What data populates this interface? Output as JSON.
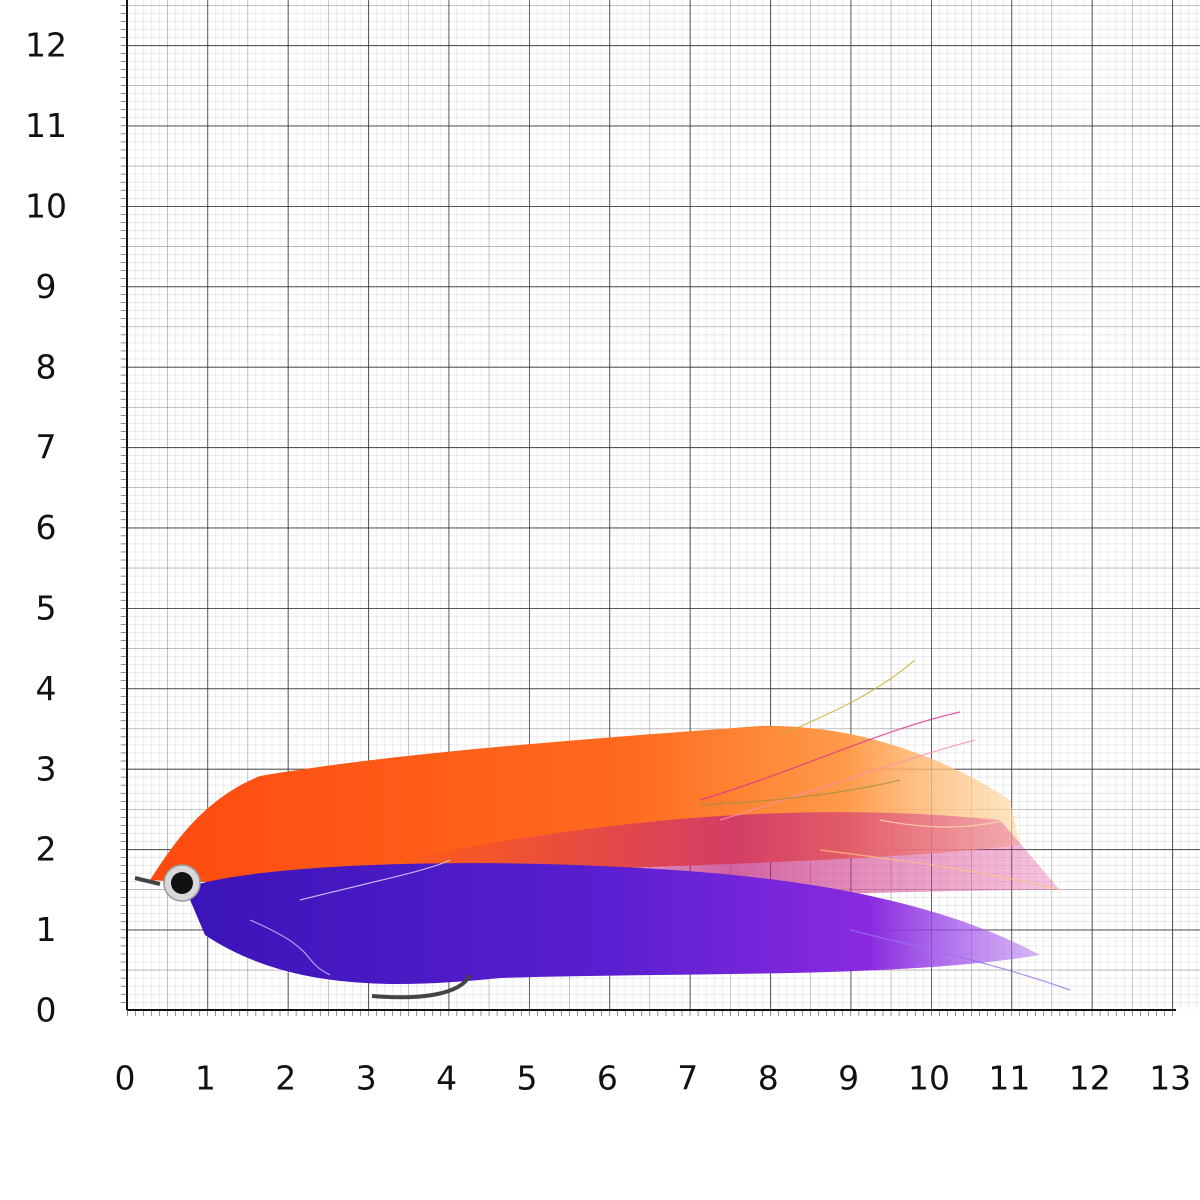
{
  "x_axis": {
    "labels": [
      "0",
      "1",
      "2",
      "3",
      "4",
      "5",
      "6",
      "7",
      "8",
      "9",
      "10",
      "11",
      "12",
      "13"
    ]
  },
  "y_axis": {
    "labels": [
      "0",
      "1",
      "2",
      "3",
      "4",
      "5",
      "6",
      "7",
      "8",
      "9",
      "10",
      "11",
      "12"
    ]
  }
}
